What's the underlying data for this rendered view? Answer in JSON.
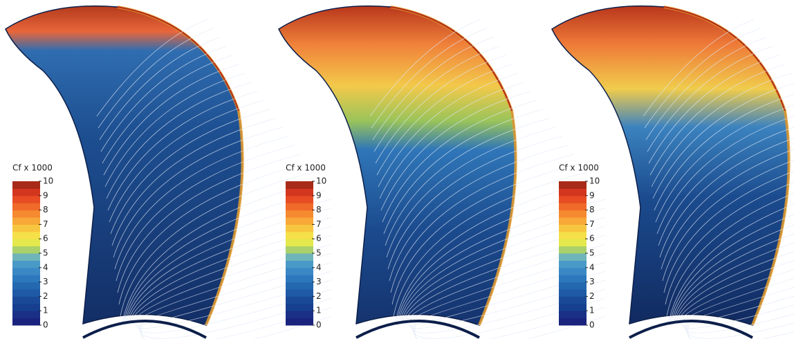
{
  "panels": [
    {
      "colorbar": {
        "title": "Cf x 1000",
        "ticks": [
          0,
          1,
          2,
          3,
          4,
          5,
          6,
          7,
          8,
          9,
          10
        ]
      }
    },
    {
      "colorbar": {
        "title": "Cf x 1000",
        "ticks": [
          0,
          1,
          2,
          3,
          4,
          5,
          6,
          7,
          8,
          9,
          10
        ]
      }
    },
    {
      "colorbar": {
        "title": "Cf x 1000",
        "ticks": [
          0,
          1,
          2,
          3,
          4,
          5,
          6,
          7,
          8,
          9,
          10
        ]
      }
    }
  ]
}
